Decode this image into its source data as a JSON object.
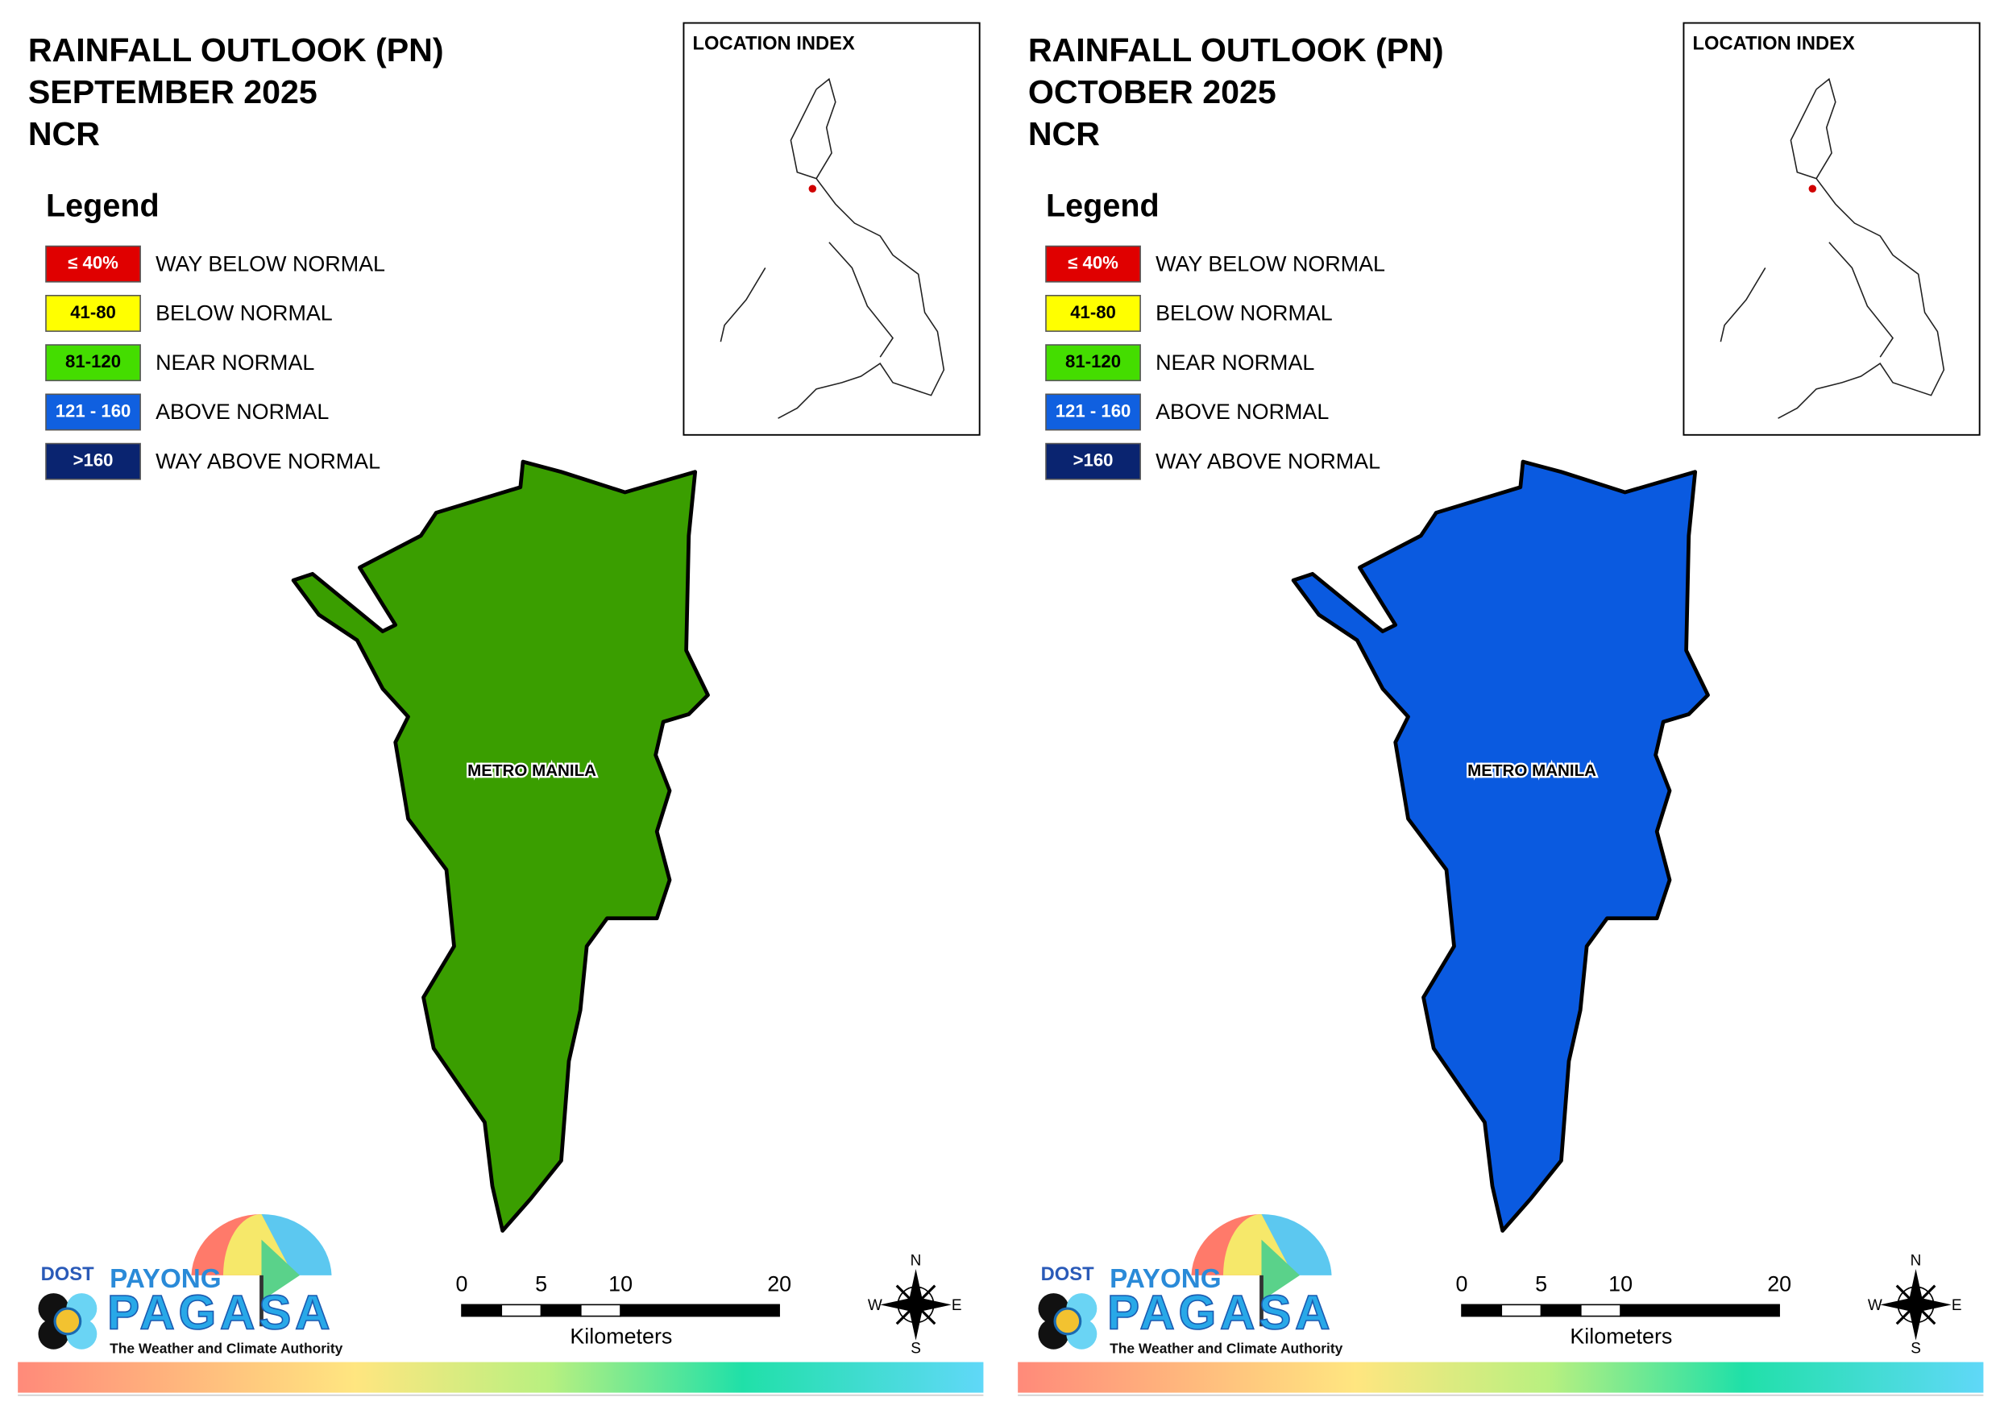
{
  "panels": [
    {
      "title": [
        "RAINFALL OUTLOOK (PN)",
        "SEPTEMBER 2025",
        "NCR"
      ],
      "legend_title": "Legend",
      "legend": [
        {
          "swatch": "≤ 40%",
          "label": "WAY BELOW NORMAL",
          "color": "#e00000"
        },
        {
          "swatch": "41-80",
          "label": "BELOW NORMAL",
          "color": "#ffff00"
        },
        {
          "swatch": "81-120",
          "label": "NEAR NORMAL",
          "color": "#44dd00"
        },
        {
          "swatch": "121 - 160",
          "label": "ABOVE NORMAL",
          "color": "#1060e0"
        },
        {
          "swatch": ">160",
          "label": "WAY ABOVE NORMAL",
          "color": "#0a2470"
        }
      ],
      "location_index": "LOCATION INDEX",
      "region_label": "METRO MANILA",
      "map_color": "#3a9e00",
      "scale_bar": {
        "ticks": [
          0,
          5,
          10,
          20
        ],
        "unit": "Kilometers"
      },
      "compass": {
        "n": "N",
        "e": "E",
        "s": "S",
        "w": "W"
      },
      "logo": {
        "dost": "DOST",
        "payong": "PAYONG",
        "pagasa": "PAGASA",
        "tagline": "The Weather and Climate Authority"
      }
    },
    {
      "title": [
        "RAINFALL OUTLOOK (PN)",
        "OCTOBER 2025",
        "NCR"
      ],
      "legend_title": "Legend",
      "legend": [
        {
          "swatch": "≤ 40%",
          "label": "WAY BELOW NORMAL",
          "color": "#e00000"
        },
        {
          "swatch": "41-80",
          "label": "BELOW NORMAL",
          "color": "#ffff00"
        },
        {
          "swatch": "81-120",
          "label": "NEAR NORMAL",
          "color": "#44dd00"
        },
        {
          "swatch": "121 - 160",
          "label": "ABOVE NORMAL",
          "color": "#1060e0"
        },
        {
          "swatch": ">160",
          "label": "WAY ABOVE NORMAL",
          "color": "#0a2470"
        }
      ],
      "location_index": "LOCATION INDEX",
      "region_label": "METRO MANILA",
      "map_color": "#0a5ae0",
      "scale_bar": {
        "ticks": [
          0,
          5,
          10,
          20
        ],
        "unit": "Kilometers"
      },
      "compass": {
        "n": "N",
        "e": "E",
        "s": "S",
        "w": "W"
      },
      "logo": {
        "dost": "DOST",
        "payong": "PAYONG",
        "pagasa": "PAGASA",
        "tagline": "The Weather and Climate Authority"
      }
    }
  ]
}
